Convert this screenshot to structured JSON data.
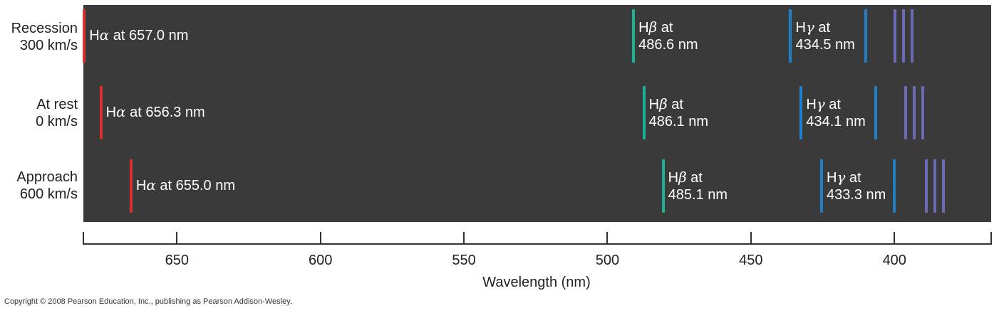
{
  "rows": [
    {
      "label_line1": "Recession",
      "label_line2": "300 km/s",
      "lines": [
        {
          "type": "alpha",
          "greek": "α",
          "text": " at 657.0 nm",
          "x_nm": 682.3
        },
        {
          "type": "beta",
          "greek": "β",
          "text_line1": " at",
          "text_line2": "486.6 nm",
          "x_nm": 490.9
        },
        {
          "type": "gamma",
          "greek": "γ",
          "text_line1": " at",
          "text_line2": "434.5 nm",
          "x_nm": 436.2
        },
        {
          "type": "violet",
          "x_nm": 399.8
        },
        {
          "type": "violet",
          "x_nm": 396.8
        },
        {
          "type": "violet",
          "x_nm": 393.8
        }
      ],
      "extra_lines": [
        {
          "type": "gamma",
          "x_nm": 410.0
        }
      ]
    },
    {
      "label_line1": "At rest",
      "label_line2": "0 km/s",
      "lines": [
        {
          "type": "alpha",
          "greek": "α",
          "text": " at 656.3 nm",
          "x_nm": 676.5
        },
        {
          "type": "beta",
          "greek": "β",
          "text_line1": " at",
          "text_line2": "486.1 nm",
          "x_nm": 487.3
        },
        {
          "type": "gamma",
          "greek": "γ",
          "text_line1": " at",
          "text_line2": "434.1 nm",
          "x_nm": 432.5
        },
        {
          "type": "violet",
          "x_nm": 396.1
        },
        {
          "type": "violet",
          "x_nm": 393.1
        },
        {
          "type": "violet",
          "x_nm": 390.1
        }
      ],
      "extra_lines": [
        {
          "type": "gamma",
          "x_nm": 406.5
        }
      ]
    },
    {
      "label_line1": "Approach",
      "label_line2": "600 km/s",
      "lines": [
        {
          "type": "alpha",
          "greek": "α",
          "text": " at 655.0 nm",
          "x_nm": 666.0
        },
        {
          "type": "beta",
          "greek": "β",
          "text_line1": " at",
          "text_line2": "485.1 nm",
          "x_nm": 480.6
        },
        {
          "type": "gamma",
          "greek": "γ",
          "text_line1": " at",
          "text_line2": "433.3 nm",
          "x_nm": 425.4
        },
        {
          "type": "violet",
          "x_nm": 389.0
        },
        {
          "type": "violet",
          "x_nm": 386.0
        },
        {
          "type": "violet",
          "x_nm": 383.0
        }
      ],
      "extra_lines": [
        {
          "type": "gamma",
          "x_nm": 400.0
        }
      ]
    }
  ],
  "axis": {
    "title": "Wavelength (nm)",
    "ticks": [
      650,
      600,
      550,
      500,
      450,
      400
    ],
    "range_nm": [
      682.6,
      366.3
    ]
  },
  "colors": {
    "alpha": "#d7322e",
    "beta": "#1ab394",
    "gamma": "#1f7fc7",
    "violet": "#6b6bb3",
    "panel": "#3a3a3a"
  },
  "copyright": "Copyright © 2008 Pearson Education, Inc., publishing as Pearson Addison-Wesley."
}
